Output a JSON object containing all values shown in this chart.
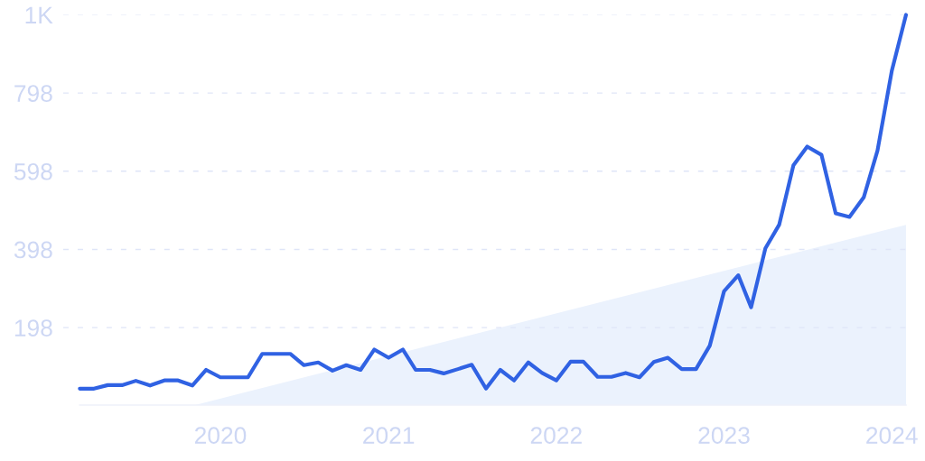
{
  "chart_data": {
    "type": "line",
    "x": [
      "2019-03",
      "2019-04",
      "2019-05",
      "2019-06",
      "2019-07",
      "2019-08",
      "2019-09",
      "2019-10",
      "2019-11",
      "2019-12",
      "2020-01",
      "2020-02",
      "2020-03",
      "2020-04",
      "2020-05",
      "2020-06",
      "2020-07",
      "2020-08",
      "2020-09",
      "2020-10",
      "2020-11",
      "2020-12",
      "2021-01",
      "2021-02",
      "2021-03",
      "2021-04",
      "2021-05",
      "2021-06",
      "2021-07",
      "2021-08",
      "2021-09",
      "2021-10",
      "2021-11",
      "2021-12",
      "2022-01",
      "2022-02",
      "2022-03",
      "2022-04",
      "2022-05",
      "2022-06",
      "2022-07",
      "2022-08",
      "2022-09",
      "2022-10",
      "2022-11",
      "2022-12",
      "2023-01",
      "2023-02",
      "2023-03",
      "2023-04",
      "2023-05",
      "2023-06",
      "2023-07",
      "2023-08",
      "2023-09",
      "2023-10",
      "2023-11",
      "2023-12",
      "2024-01",
      "2024-02"
    ],
    "series": [
      {
        "type": "area",
        "x": [
          "2019-11-07",
          "2024-02"
        ],
        "values": [
          0,
          461
        ],
        "color": "#ebf2fd"
      },
      {
        "color": "#3062e3",
        "values": [
          42,
          42,
          51,
          51,
          62,
          50,
          63,
          63,
          50,
          90,
          71,
          71,
          71,
          131,
          131,
          131,
          102,
          109,
          88,
          102,
          90,
          142,
          121,
          142,
          90,
          90,
          81,
          92,
          103,
          42,
          90,
          63,
          109,
          82,
          63,
          111,
          111,
          72,
          72,
          82,
          71,
          110,
          121,
          92,
          92,
          152,
          291,
          332,
          250,
          401,
          461,
          613,
          661,
          640,
          490,
          481,
          531,
          651,
          854,
          998
        ]
      }
    ],
    "xlim": [
      "2019-01-24",
      "2024-02-05"
    ],
    "xticks": [
      {
        "value": "2020",
        "label": "2020"
      },
      {
        "value": "2021",
        "label": "2021"
      },
      {
        "value": "2022",
        "label": "2022"
      },
      {
        "value": "2023",
        "label": "2023"
      },
      {
        "value": "2024",
        "label": "2024"
      }
    ],
    "ylim": [
      0,
      998
    ],
    "yticks": [
      198,
      398,
      598,
      798,
      {
        "value": 998,
        "label": "1K"
      }
    ],
    "grid": "y",
    "line_style": "solid"
  }
}
